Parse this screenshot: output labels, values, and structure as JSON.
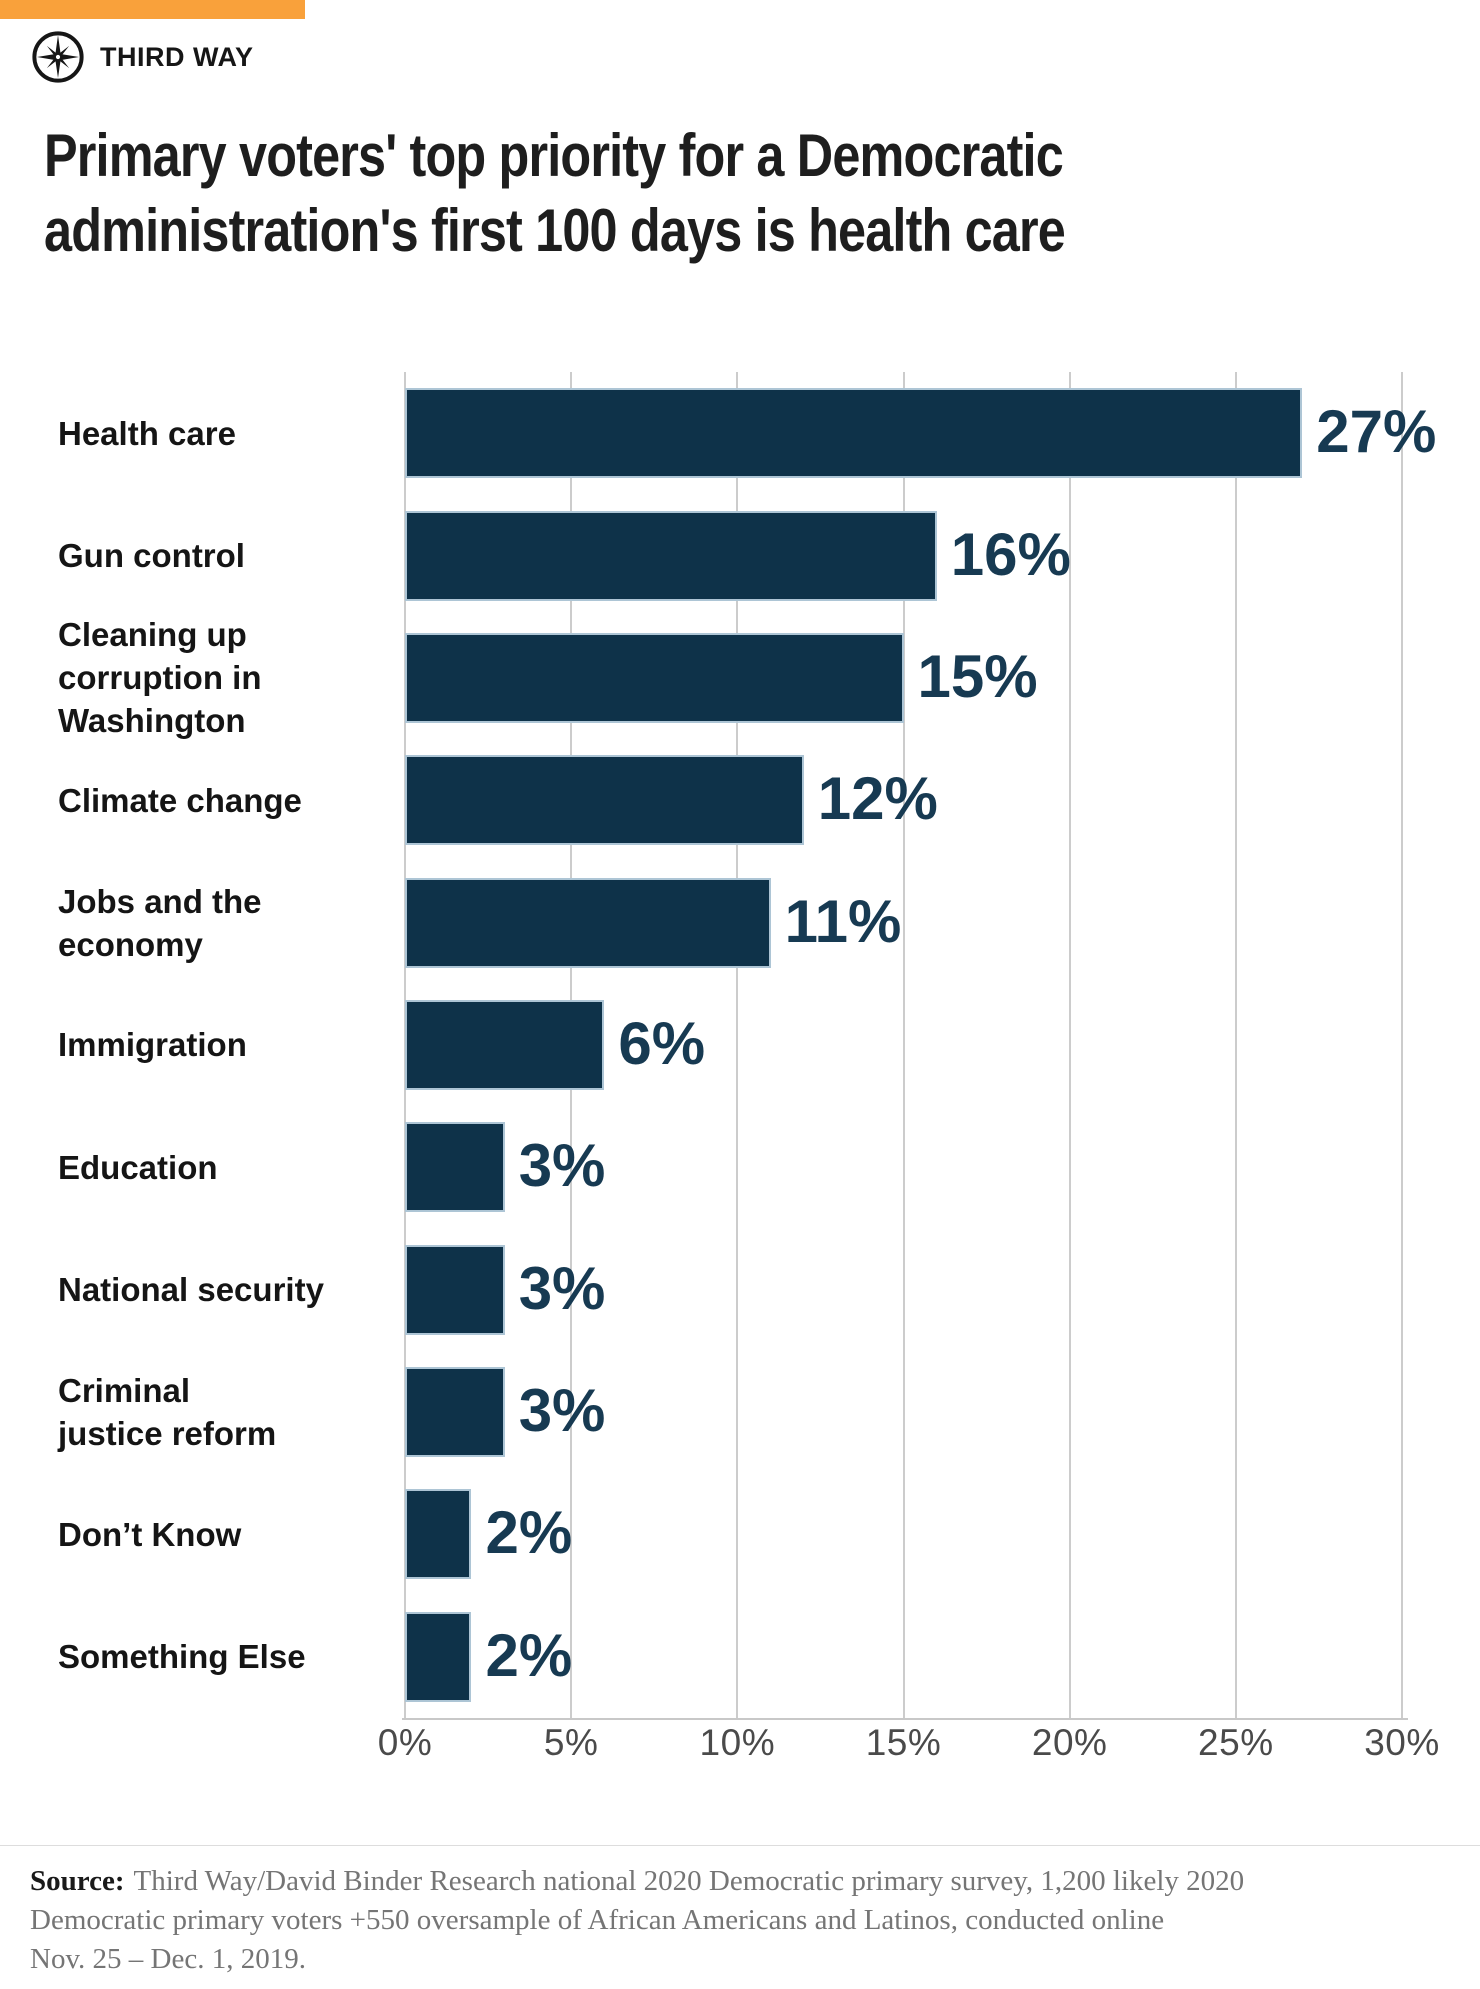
{
  "brand": {
    "accent_color": "#F9A13B",
    "logo_text": "THIRD WAY",
    "logo_icon": "compass-star-icon"
  },
  "title": "Primary voters' top priority for a Democratic\nadministration's first 100 days is health care",
  "chart_data": {
    "type": "bar",
    "orientation": "horizontal",
    "title": "Primary voters' top priority for a Democratic administration's first 100 days is health care",
    "categories": [
      "Health care",
      "Gun control",
      "Cleaning up corruption in Washington",
      "Climate change",
      "Jobs and the economy",
      "Immigration",
      "Education",
      "National security",
      "Criminal justice reform",
      "Don’t Know",
      "Something Else"
    ],
    "display_labels": [
      "Health care",
      "Gun control",
      "Cleaning up\ncorruption in\nWashington",
      "Climate change",
      "Jobs and the\neconomy",
      "Immigration",
      "Education",
      "National security",
      "Criminal\njustice reform",
      "Don’t Know",
      "Something Else"
    ],
    "values": [
      27,
      16,
      15,
      12,
      11,
      6,
      3,
      3,
      3,
      2,
      2
    ],
    "value_labels": [
      "27%",
      "16%",
      "15%",
      "12%",
      "11%",
      "6%",
      "3%",
      "3%",
      "3%",
      "2%",
      "2%"
    ],
    "xlabel": "",
    "ylabel": "",
    "xlim": [
      0,
      30
    ],
    "x_tick_values": [
      0,
      5,
      10,
      15,
      20,
      25,
      30
    ],
    "x_tick_labels": [
      "0%",
      "5%",
      "10%",
      "15%",
      "20%",
      "25%",
      "30%"
    ],
    "grid": true,
    "gridline_color": "#cccccc",
    "bar_color": "#0e3249",
    "bar_border_color": "#adc5d5",
    "value_label_color": "#173a52",
    "legend": "none"
  },
  "source": {
    "label": "Source:",
    "text": "Third Way/David Binder Research national 2020 Democratic primary survey, 1,200 likely 2020\nDemocratic primary voters +550 oversample of African Americans and Latinos, conducted online\nNov. 25 – Dec. 1, 2019."
  }
}
